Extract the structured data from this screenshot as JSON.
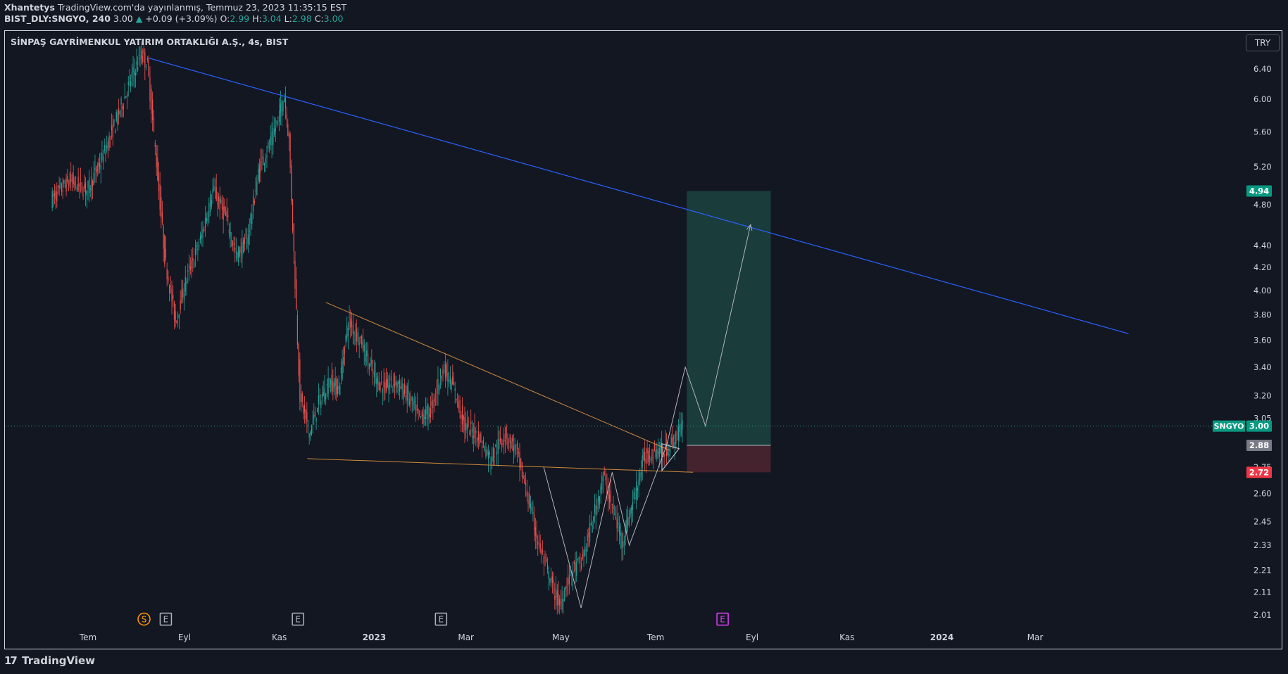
{
  "header": {
    "author": "Xhantetys",
    "published": "TradingView.com'da yayınlanmış, Temmuz 23, 2023 11:35:15 EST",
    "symbol_line": "BIST_DLY:SNGYO, 240",
    "last": "3.00",
    "change_arrow": "▲",
    "change": "+0.09 (+3.09%)",
    "o_label": "O:",
    "o_value": "2.99",
    "h_label": "H:",
    "h_value": "3.04",
    "l_label": "L:",
    "l_value": "2.98",
    "c_label": "C:",
    "c_value": "3.00"
  },
  "chart": {
    "title": "SİNPAŞ GAYRİMENKUL YATIRIM ORTAKLIĞI A.Ş., 4s, BIST",
    "currency": "TRY"
  },
  "brand": {
    "logo": "17",
    "name": "TradingView"
  },
  "colors": {
    "background": "#131722",
    "up": "#26a69a",
    "down": "#ef5350",
    "trendline_blue": "#2962ff",
    "triangle_orange": "#d08a3a",
    "target_zone": "#1d4a44",
    "stop_zone": "#4e2430"
  },
  "chart_data": {
    "type": "candlestick",
    "scale": "log",
    "x_labels": [
      "Tem",
      "Eyl",
      "Kas",
      "2023",
      "Mar",
      "May",
      "Tem",
      "Eyl",
      "Kas",
      "2024",
      "Mar"
    ],
    "y_ticks": [
      6.4,
      6.0,
      5.6,
      5.2,
      4.8,
      4.4,
      4.2,
      4.0,
      3.8,
      3.6,
      3.4,
      3.2,
      3.05,
      2.75,
      2.6,
      2.45,
      2.33,
      2.21,
      2.11,
      2.01
    ],
    "y_tick_labels": [
      "6.40",
      "6.00",
      "5.60",
      "5.20",
      "4.80",
      "4.40",
      "4.20",
      "4.00",
      "3.80",
      "3.60",
      "3.40",
      "3.20",
      "3.05",
      "2.75",
      "2.60",
      "2.45",
      "2.33",
      "2.21",
      "2.11",
      "2.01"
    ],
    "price_tags": [
      {
        "label": "4.94",
        "value": 4.94,
        "color": "#089981"
      },
      {
        "name": "SNGYO",
        "label": "3.00",
        "value": 3.0,
        "color": "#089981"
      },
      {
        "label": "2.88",
        "value": 2.88,
        "color": "#787b86"
      },
      {
        "label": "2.72",
        "value": 2.72,
        "color": "#f23645"
      }
    ],
    "events": [
      {
        "label": "S",
        "date": "2022-08-06",
        "color": "#ff9800"
      },
      {
        "label": "E",
        "date": "2022-08-20",
        "color": "#b2b5be"
      },
      {
        "label": "E",
        "date": "2022-11-13",
        "color": "#b2b5be"
      },
      {
        "label": "E",
        "date": "2023-02-13",
        "color": "#b2b5be"
      },
      {
        "label": "E",
        "date": "2023-08-13",
        "color": "#e040fb"
      }
    ],
    "price_path": [
      [
        "2022-06-08",
        4.85
      ],
      [
        "2022-06-20",
        5.05
      ],
      [
        "2022-07-01",
        4.95
      ],
      [
        "2022-07-10",
        5.25
      ],
      [
        "2022-07-20",
        5.75
      ],
      [
        "2022-07-30",
        6.3
      ],
      [
        "2022-08-05",
        6.6
      ],
      [
        "2022-08-09",
        6.45
      ],
      [
        "2022-08-14",
        5.4
      ],
      [
        "2022-08-20",
        4.3
      ],
      [
        "2022-08-27",
        3.75
      ],
      [
        "2022-09-04",
        4.15
      ],
      [
        "2022-09-12",
        4.45
      ],
      [
        "2022-09-20",
        4.95
      ],
      [
        "2022-09-29",
        4.65
      ],
      [
        "2022-10-05",
        4.3
      ],
      [
        "2022-10-12",
        4.45
      ],
      [
        "2022-10-20",
        5.2
      ],
      [
        "2022-10-28",
        5.5
      ],
      [
        "2022-11-05",
        6.05
      ],
      [
        "2022-11-08",
        5.5
      ],
      [
        "2022-11-15",
        3.2
      ],
      [
        "2022-11-21",
        2.95
      ],
      [
        "2022-11-27",
        3.15
      ],
      [
        "2022-12-04",
        3.3
      ],
      [
        "2022-12-10",
        3.25
      ],
      [
        "2022-12-16",
        3.75
      ],
      [
        "2022-12-24",
        3.6
      ],
      [
        "2023-01-01",
        3.35
      ],
      [
        "2023-01-08",
        3.25
      ],
      [
        "2023-01-15",
        3.3
      ],
      [
        "2023-01-23",
        3.2
      ],
      [
        "2023-01-31",
        3.05
      ],
      [
        "2023-02-07",
        3.1
      ],
      [
        "2023-02-15",
        3.4
      ],
      [
        "2023-02-22",
        3.25
      ],
      [
        "2023-03-01",
        3.0
      ],
      [
        "2023-03-09",
        2.95
      ],
      [
        "2023-03-17",
        2.8
      ],
      [
        "2023-03-27",
        2.95
      ],
      [
        "2023-04-03",
        2.85
      ],
      [
        "2023-04-10",
        2.6
      ],
      [
        "2023-04-17",
        2.35
      ],
      [
        "2023-04-24",
        2.18
      ],
      [
        "2023-05-01",
        2.05
      ],
      [
        "2023-05-08",
        2.2
      ],
      [
        "2023-05-15",
        2.25
      ],
      [
        "2023-05-22",
        2.45
      ],
      [
        "2023-05-29",
        2.7
      ],
      [
        "2023-06-03",
        2.55
      ],
      [
        "2023-06-10",
        2.35
      ],
      [
        "2023-06-17",
        2.55
      ],
      [
        "2023-06-24",
        2.8
      ],
      [
        "2023-07-01",
        2.85
      ],
      [
        "2023-07-08",
        2.85
      ],
      [
        "2023-07-14",
        2.92
      ],
      [
        "2023-07-19",
        3.0
      ]
    ],
    "drawings": {
      "long_trendline": [
        [
          "2022-08-09",
          6.55
        ],
        [
          "2024-04-30",
          3.65
        ]
      ],
      "triangle_upper": [
        [
          "2022-12-01",
          3.9
        ],
        [
          "2023-07-10",
          2.85
        ]
      ],
      "triangle_lower": [
        [
          "2022-11-19",
          2.8
        ],
        [
          "2023-07-25",
          2.72
        ]
      ],
      "projection_path": [
        [
          "2023-04-20",
          2.75
        ],
        [
          "2023-05-14",
          2.04
        ],
        [
          "2023-06-03",
          2.72
        ],
        [
          "2023-06-14",
          2.33
        ],
        [
          "2023-07-08",
          2.88
        ],
        [
          "2023-07-20",
          3.4
        ],
        [
          "2023-08-02",
          3.0
        ],
        [
          "2023-08-31",
          4.6
        ]
      ],
      "position": {
        "start": "2023-07-21",
        "end": "2023-09-13",
        "target": 4.94,
        "entry": 2.88,
        "stop": 2.72
      }
    }
  }
}
